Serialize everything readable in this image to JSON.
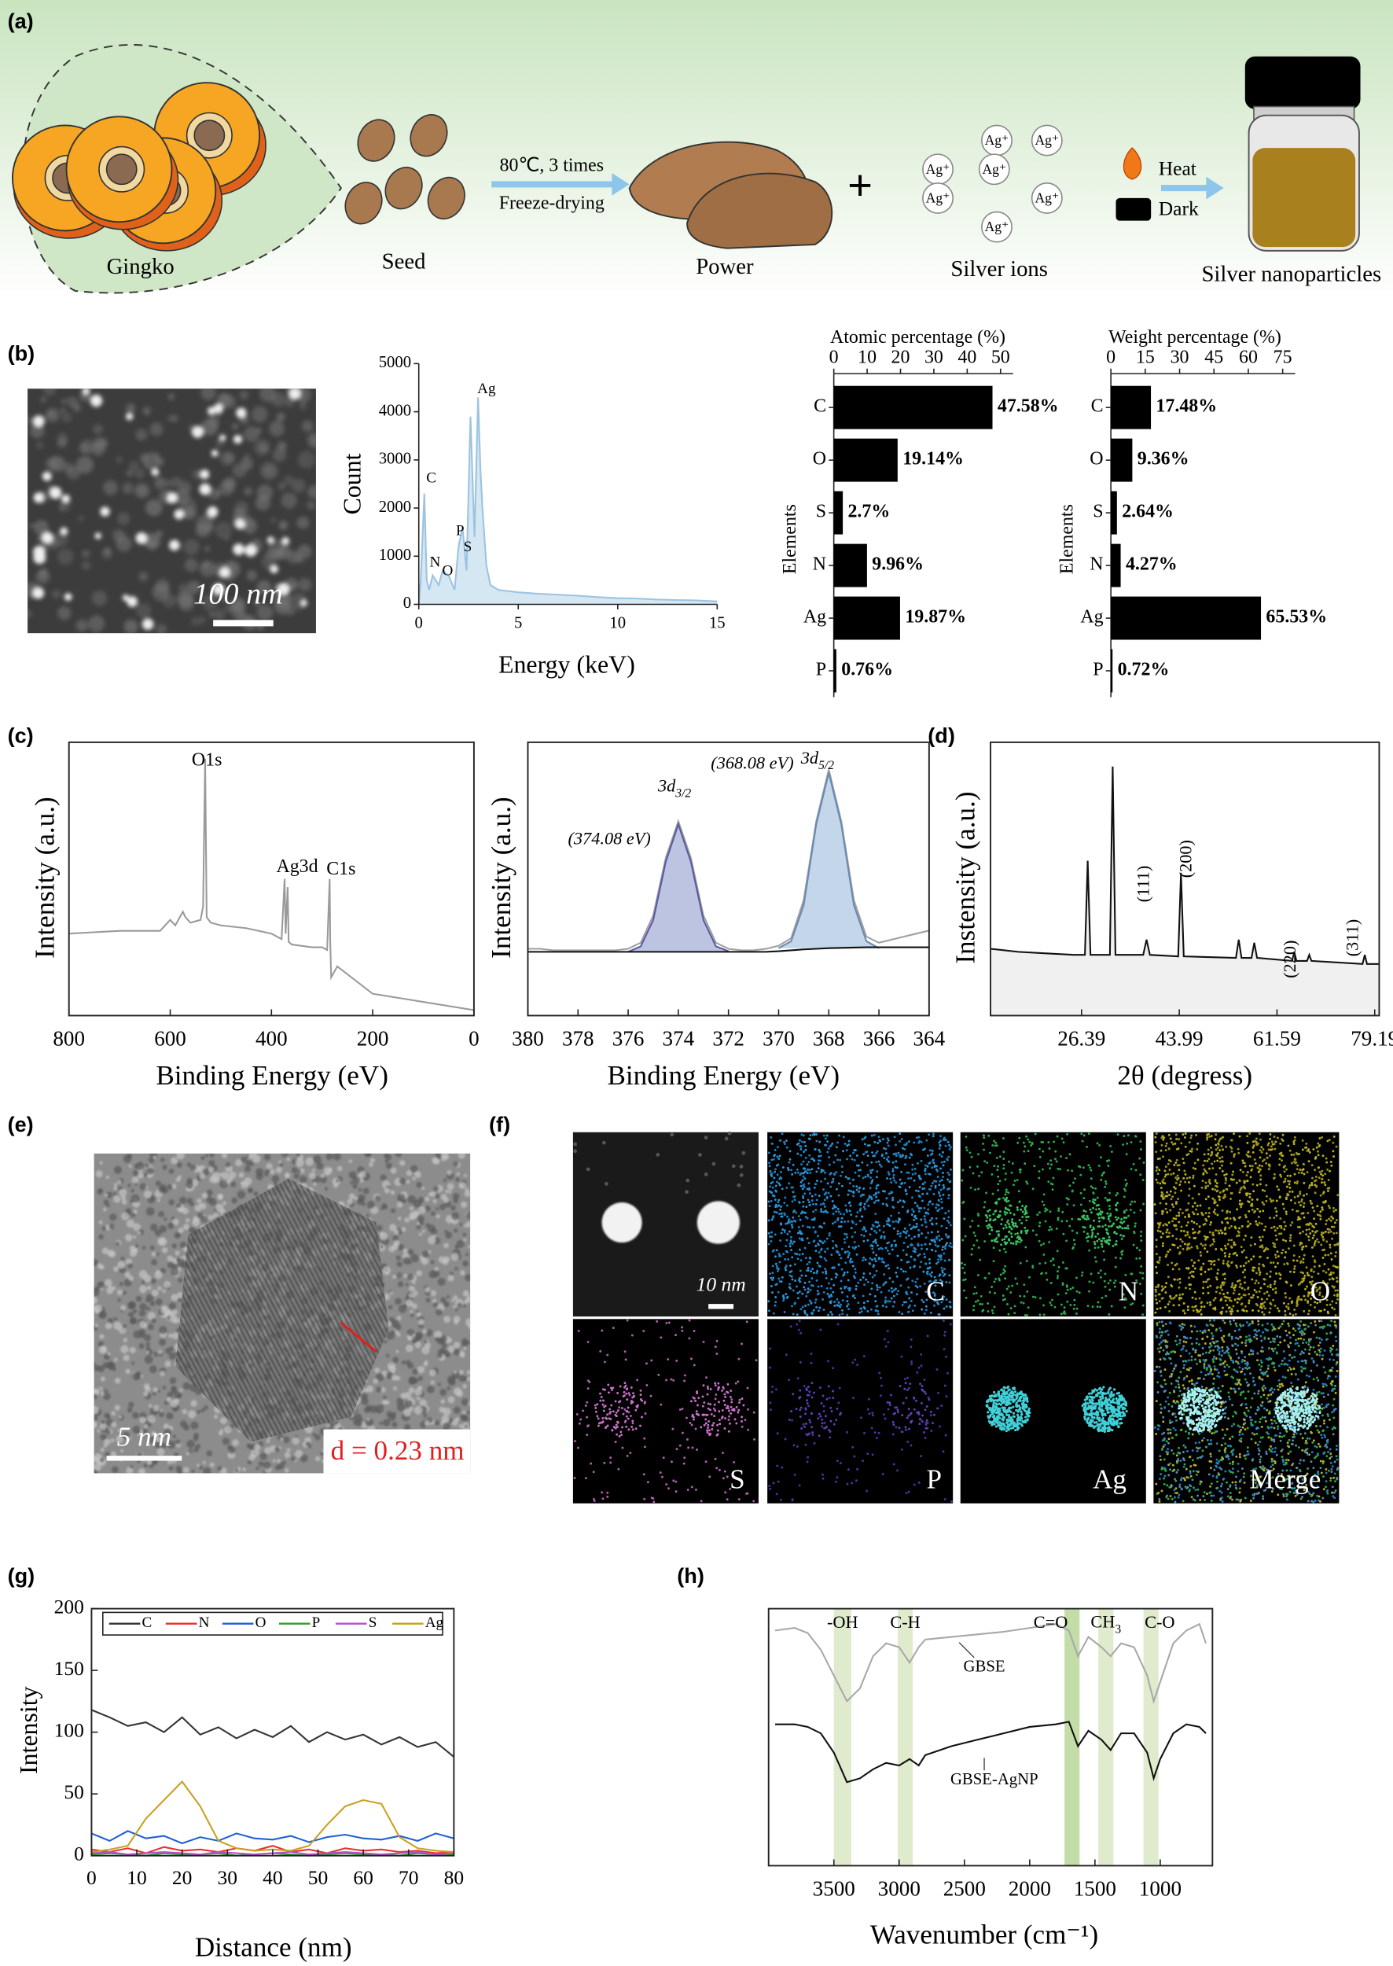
{
  "panel_labels": [
    "(a)",
    "(b)",
    "(c)",
    "(d)",
    "(e)",
    "(f)",
    "(g)",
    "(h)"
  ],
  "scheme": {
    "gingko": "Gingko",
    "seed": "Seed",
    "condition": "80℃, 3 times",
    "process": "Freeze-drying",
    "powder": "Power",
    "plus": "+",
    "ions": [
      "Ag⁺",
      "Ag⁺",
      "Ag⁺",
      "Ag⁺",
      "Ag⁺",
      "Ag⁺",
      "Ag⁺"
    ],
    "silver_ions": "Silver ions",
    "heat": "Heat",
    "dark": "Dark",
    "product": "Silver nanoparticles"
  },
  "sem": {
    "scale": "100 nm"
  },
  "tem": {
    "scale": "5 nm",
    "spacing": "d = 0.23 nm"
  },
  "mapping": {
    "scale": "10 nm",
    "labels": [
      "C",
      "N",
      "O",
      "S",
      "P",
      "Ag",
      "Merge"
    ]
  },
  "chart_data": [
    {
      "type": "line",
      "xlabel": "Energy (keV)",
      "ylabel": "Count",
      "color": "#9cc3e0",
      "fill": "#d6e7f4",
      "x": [
        0,
        0.1,
        0.28,
        0.4,
        0.52,
        0.7,
        1,
        1.2,
        1.5,
        1.8,
        2,
        2.2,
        2.4,
        2.6,
        2.8,
        2.98,
        3.1,
        3.2,
        3.4,
        3.6,
        4,
        5,
        6,
        7,
        8,
        9,
        10,
        11,
        12,
        13,
        14,
        15
      ],
      "values": [
        0,
        500,
        2300,
        500,
        300,
        600,
        400,
        700,
        600,
        300,
        1200,
        1600,
        700,
        3900,
        1400,
        4300,
        2800,
        2000,
        800,
        400,
        300,
        250,
        220,
        200,
        180,
        150,
        130,
        120,
        100,
        90,
        80,
        60
      ],
      "xlim": [
        0,
        15
      ],
      "xticks": [
        0,
        5,
        10,
        15
      ],
      "ylim": [
        0,
        5000
      ],
      "yticks": [
        0,
        1000,
        2000,
        3000,
        4000,
        5000
      ],
      "annotations": [
        "C",
        "N",
        "O",
        "P",
        "S",
        "Ag"
      ]
    },
    {
      "type": "bar",
      "orientation": "horizontal",
      "title": "Atomic percentage (%)",
      "ylabel": "Elements",
      "color": "#000000",
      "categories": [
        "C",
        "O",
        "S",
        "N",
        "Ag",
        "P"
      ],
      "values": [
        47.58,
        19.14,
        2.7,
        9.96,
        19.87,
        0.76
      ],
      "value_labels": [
        "47.58%",
        "19.14%",
        "2.7%",
        "9.96%",
        "19.87%",
        "0.76%"
      ],
      "xlim": [
        0,
        50
      ],
      "xticks": [
        0,
        10,
        20,
        30,
        40,
        50
      ]
    },
    {
      "type": "bar",
      "orientation": "horizontal",
      "title": "Weight percentage (%)",
      "ylabel": "Elements",
      "color": "#000000",
      "categories": [
        "C",
        "O",
        "S",
        "N",
        "Ag",
        "P"
      ],
      "values": [
        17.48,
        9.36,
        2.64,
        4.27,
        65.53,
        0.72
      ],
      "value_labels": [
        "17.48%",
        "9.36%",
        "2.64%",
        "4.27%",
        "65.53%",
        "0.72%"
      ],
      "xlim": [
        0,
        75
      ],
      "xticks": [
        0,
        15,
        30,
        45,
        60,
        75
      ]
    },
    {
      "type": "line",
      "xlabel": "Binding Energy (eV)",
      "ylabel": "Intensity (a.u.)",
      "color": "#9a9a9a",
      "x": [
        800,
        700,
        620,
        600,
        590,
        575,
        570,
        560,
        540,
        535,
        531,
        528,
        520,
        500,
        450,
        400,
        380,
        374,
        372,
        368,
        366,
        360,
        320,
        300,
        290,
        285,
        284,
        282,
        270,
        200,
        100,
        0
      ],
      "values": [
        30,
        31,
        31,
        35,
        33,
        38,
        36,
        34,
        35,
        40,
        94,
        36,
        34,
        33,
        32,
        30,
        28,
        50,
        30,
        47,
        27,
        26,
        25,
        25,
        24,
        50,
        28,
        14,
        18,
        8,
        5,
        2
      ],
      "xlim": [
        800,
        0
      ],
      "xticks": [
        800,
        600,
        400,
        200,
        0
      ],
      "ylim": [
        0,
        100
      ],
      "annotations": [
        "O1s",
        "Ag3d",
        "C1s"
      ]
    },
    {
      "type": "line",
      "xlabel": "Binding Energy (eV)",
      "ylabel": "Intensity (a.u.)",
      "x": [
        380,
        379.5,
        379,
        378.5,
        378,
        377.5,
        377,
        376.5,
        376,
        375.5,
        375,
        374.5,
        374,
        373.5,
        373,
        372.5,
        372,
        371.5,
        371,
        370.5,
        370,
        369.5,
        369,
        368.5,
        368,
        367.5,
        367,
        366.5,
        366,
        365.5,
        365,
        364.5,
        364
      ],
      "series": [
        {
          "color": "#a0a0a0",
          "values": [
            32,
            32,
            31.5,
            31.5,
            31.5,
            31.5,
            31.5,
            31.5,
            32,
            34,
            43,
            62,
            74,
            62,
            43,
            34,
            32,
            31.5,
            31.5,
            32,
            33,
            35.5,
            48,
            74,
            91,
            74,
            48,
            36,
            34,
            35,
            36,
            37,
            38
          ]
        },
        {
          "color": "#5a5aa0",
          "fill": "#bcc4e2",
          "values": [
            null,
            null,
            null,
            null,
            null,
            null,
            null,
            null,
            31,
            32.8,
            41.5,
            60.7,
            73,
            60.7,
            41.5,
            32.8,
            31.2,
            null,
            null,
            null,
            null,
            null,
            null,
            null,
            null,
            null,
            null,
            null,
            null,
            null,
            null,
            null,
            null
          ]
        },
        {
          "color": "#6a8ab0",
          "fill": "#c4d6ea",
          "values": [
            null,
            null,
            null,
            null,
            null,
            null,
            null,
            null,
            null,
            null,
            null,
            null,
            null,
            null,
            null,
            null,
            null,
            null,
            null,
            null,
            32.2,
            34.5,
            46.4,
            73,
            90,
            73,
            46.4,
            34.5,
            32.2,
            null,
            null,
            null,
            null
          ]
        },
        {
          "color": "#111111",
          "values": [
            31,
            31,
            31,
            31,
            31,
            31,
            31,
            31,
            31,
            31,
            31,
            31,
            31,
            31,
            31,
            31,
            31,
            31,
            31,
            31,
            31.2,
            31.5,
            31.8,
            32,
            32.2,
            32.3,
            32.4,
            32.5,
            32.5,
            32.5,
            32.5,
            32.5,
            32.5
          ]
        }
      ],
      "xlim": [
        380,
        364
      ],
      "xticks": [
        380,
        378,
        376,
        374,
        372,
        370,
        368,
        366,
        364
      ],
      "ylim": [
        10,
        100
      ],
      "annotations": [
        "(374.08 eV)",
        {
          "main": "3d",
          "sub": "3/2"
        },
        "(368.08 eV)",
        {
          "main": "3d",
          "sub": "5/2"
        }
      ]
    },
    {
      "type": "line",
      "xlabel": "2θ (degress)",
      "ylabel": "Instensity (a.u.)",
      "color": "#111111",
      "fill": "#f0f0f0",
      "x": [
        10,
        15,
        20,
        25,
        27,
        27.5,
        28,
        31.5,
        32,
        32.5,
        37.5,
        38.1,
        38.7,
        43.8,
        44.3,
        44.8,
        54.2,
        54.7,
        55.2,
        57,
        57.5,
        58,
        64.3,
        64.7,
        65.1,
        67,
        67.4,
        67.8,
        77,
        77.4,
        77.8,
        80
      ],
      "values": [
        32,
        31,
        30.5,
        30,
        30,
        61,
        30,
        30,
        92,
        30,
        30,
        35,
        30,
        29.5,
        57,
        29.5,
        29,
        35,
        29,
        29,
        34,
        29,
        28,
        31,
        28,
        28,
        30,
        28,
        27,
        30,
        27,
        27
      ],
      "xlim": [
        10,
        80
      ],
      "xticks": [
        26.39,
        43.99,
        61.59,
        79.19
      ],
      "ylim": [
        10,
        100
      ],
      "annotations": [
        "(111)",
        "(200)",
        "(220)",
        "(311)"
      ]
    },
    {
      "type": "line",
      "xlabel": "Distance (nm)",
      "ylabel": "Intensity",
      "x": [
        0,
        4,
        8,
        12,
        16,
        20,
        24,
        28,
        32,
        36,
        40,
        44,
        48,
        52,
        56,
        60,
        64,
        68,
        72,
        76,
        80
      ],
      "series": [
        {
          "name": "C",
          "color": "#333333",
          "values": [
            118,
            112,
            105,
            108,
            100,
            112,
            98,
            104,
            95,
            102,
            96,
            105,
            92,
            100,
            94,
            98,
            90,
            96,
            88,
            92,
            80
          ]
        },
        {
          "name": "N",
          "color": "#e8302a",
          "values": [
            5,
            3,
            6,
            2,
            7,
            4,
            5,
            3,
            6,
            4,
            8,
            3,
            5,
            2,
            6,
            4,
            5,
            3,
            4,
            2,
            3
          ]
        },
        {
          "name": "O",
          "color": "#1f5fd6",
          "values": [
            18,
            12,
            20,
            14,
            16,
            10,
            15,
            12,
            18,
            14,
            13,
            16,
            11,
            15,
            17,
            14,
            13,
            16,
            12,
            18,
            14
          ]
        },
        {
          "name": "P",
          "color": "#2ca02c",
          "values": [
            1,
            2,
            1,
            0,
            2,
            1,
            1,
            2,
            0,
            1,
            2,
            1,
            0,
            1,
            2,
            1,
            1,
            0,
            2,
            1,
            1
          ]
        },
        {
          "name": "S",
          "color": "#b84fd6",
          "values": [
            2,
            3,
            1,
            2,
            3,
            2,
            1,
            3,
            2,
            1,
            2,
            3,
            1,
            2,
            3,
            2,
            1,
            2,
            3,
            1,
            2
          ]
        },
        {
          "name": "Ag",
          "color": "#c8a020",
          "values": [
            3,
            5,
            8,
            30,
            45,
            60,
            40,
            12,
            6,
            4,
            5,
            4,
            8,
            25,
            40,
            45,
            42,
            15,
            6,
            4,
            3
          ]
        }
      ],
      "xlim": [
        0,
        80
      ],
      "xticks": [
        0,
        10,
        20,
        30,
        40,
        50,
        60,
        70,
        80
      ],
      "ylim": [
        0,
        200
      ],
      "yticks": [
        0,
        50,
        100,
        150,
        200
      ],
      "legend": "top"
    },
    {
      "type": "line",
      "xlabel": "Wavenumber (cm⁻¹)",
      "x": [
        3950,
        3800,
        3700,
        3600,
        3500,
        3400,
        3300,
        3200,
        3100,
        3000,
        2920,
        2850,
        2800,
        2600,
        2400,
        2200,
        2000,
        1800,
        1700,
        1630,
        1550,
        1450,
        1380,
        1300,
        1200,
        1100,
        1050,
        1000,
        900,
        800,
        700,
        650
      ],
      "series": [
        {
          "name": "GBSE",
          "color": "#a8a8a8",
          "values": [
            91.5,
            92.5,
            90.5,
            84,
            74,
            64,
            69,
            81.5,
            86.5,
            85,
            79,
            85,
            88,
            89,
            90,
            91,
            92.5,
            94,
            91.5,
            81.5,
            89,
            85,
            81.5,
            86.5,
            85,
            74,
            64,
            71.5,
            86.5,
            91.5,
            94,
            86.5
          ]
        },
        {
          "name": "GBSE-AgNP",
          "color": "#111111",
          "values": [
            55,
            55,
            54,
            51.5,
            44,
            32.5,
            34,
            37.5,
            40,
            39,
            41.5,
            39,
            43,
            46.5,
            49,
            51.5,
            54,
            55,
            56,
            46.5,
            52.5,
            49,
            45,
            51.5,
            51.5,
            44,
            34,
            41.5,
            51.5,
            55,
            54,
            51.5
          ]
        }
      ],
      "xlim": [
        4000,
        600
      ],
      "xticks": [
        3500,
        3000,
        2500,
        2000,
        1500,
        1000
      ],
      "ylim": [
        0,
        100
      ],
      "annotations": [
        "-OH",
        "C-H",
        "C=O",
        {
          "main": "CH",
          "sub": "3"
        },
        "C-O"
      ]
    }
  ]
}
